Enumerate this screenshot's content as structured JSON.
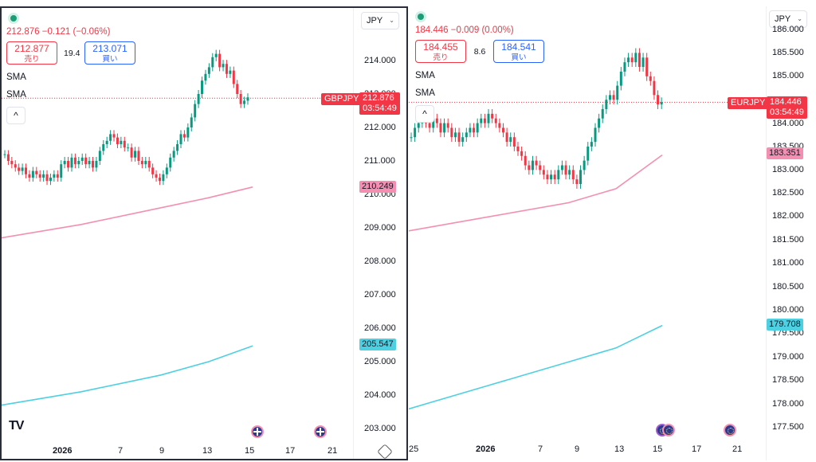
{
  "left": {
    "symbol": "GBPJPY",
    "quote": "212.876 −0.121 (−0.06%)",
    "bid": "212.877",
    "bid_label": "売り",
    "spread": "19.4",
    "ask": "213.071",
    "ask_label": "買い",
    "sma1": "SMA",
    "sma2": "SMA",
    "currency": "JPY",
    "price": "212.876",
    "countdown": "03:54:49",
    "sma_short_value": "210.249",
    "sma_long_value": "205.547",
    "y_ticks": [
      "214.000",
      "213.000",
      "212.000",
      "211.000",
      "210.000",
      "209.000",
      "208.000",
      "207.000",
      "206.000",
      "205.000",
      "204.000",
      "203.000"
    ],
    "x_ticks": [
      "2026",
      "7",
      "9",
      "13",
      "15",
      "17",
      "21"
    ],
    "colors": {
      "up": "#089981",
      "down": "#f23645",
      "sma_short": "#f48fb1",
      "sma_long": "#4dd0e1"
    }
  },
  "right": {
    "symbol": "EURJPY",
    "quote": "184.446 −0.009 (0.00%)",
    "bid": "184.455",
    "bid_label": "売り",
    "spread": "8.6",
    "ask": "184.541",
    "ask_label": "買い",
    "sma1": "SMA",
    "sma2": "SMA",
    "currency": "JPY",
    "price": "184.446",
    "countdown": "03:54:49",
    "sma_short_value": "183.351",
    "sma_long_value": "179.708",
    "y_ticks": [
      "186.000",
      "185.500",
      "185.000",
      "184.000",
      "183.500",
      "183.000",
      "182.500",
      "182.000",
      "181.500",
      "181.000",
      "180.500",
      "180.000",
      "179.500",
      "179.000",
      "178.500",
      "178.000",
      "177.500"
    ],
    "x_ticks": [
      "25",
      "2026",
      "7",
      "9",
      "13",
      "15",
      "17",
      "21"
    ],
    "colors": {
      "up": "#089981",
      "down": "#f23645",
      "sma_short": "#f48fb1",
      "sma_long": "#4dd0e1"
    }
  },
  "logo": "TV"
}
